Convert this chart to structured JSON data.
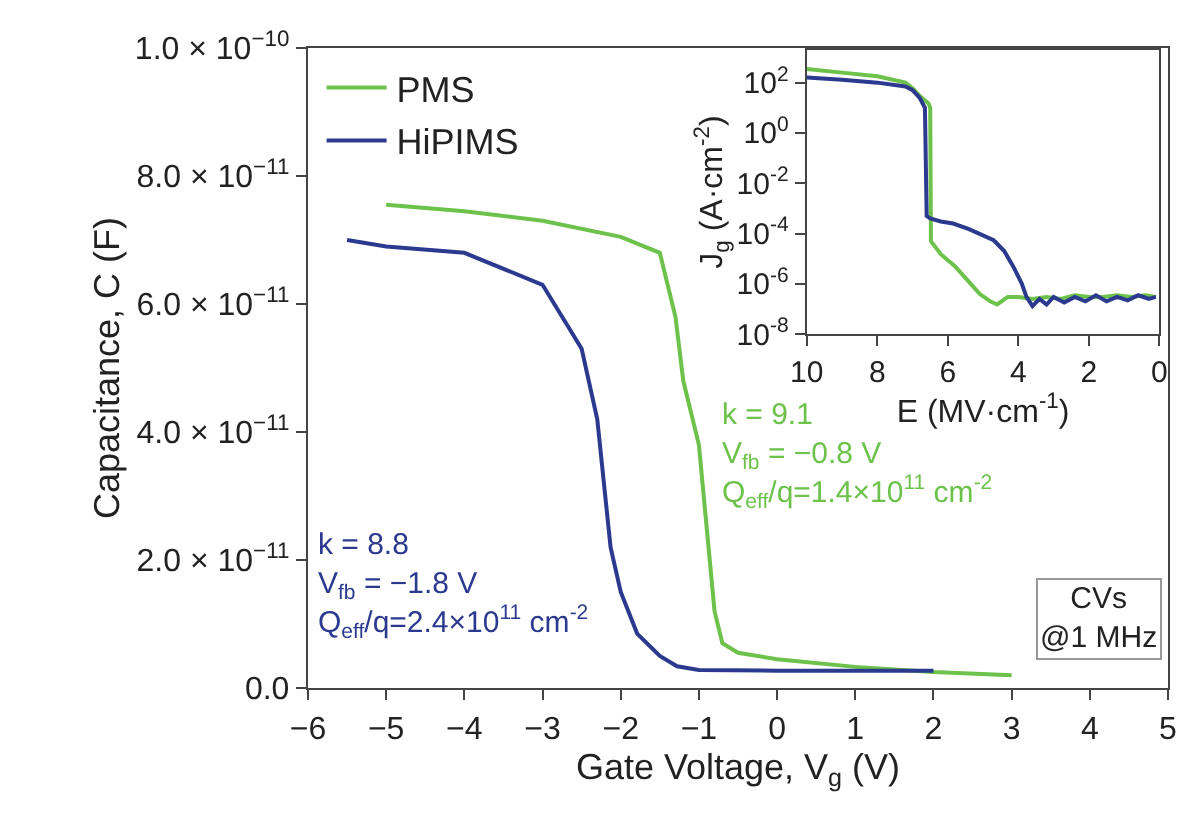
{
  "chart_data": [
    {
      "type": "line",
      "xlabel": "Gate Voltage, V$_{g}$ (V)",
      "ylabel": "Capacitance, C (F)",
      "series": [
        {
          "name": "PMS",
          "color": "#6cc24a",
          "x": [
            -5,
            -4,
            -3,
            -2,
            -1.5,
            -1.3,
            -1.2,
            -1.0,
            -0.9,
            -0.8,
            -0.7,
            -0.5,
            0,
            1,
            2,
            3
          ],
          "values": [
            7.55e-11,
            7.45e-11,
            7.3e-11,
            7.05e-11,
            6.8e-11,
            5.8e-11,
            4.8e-11,
            3.8e-11,
            2.5e-11,
            1.2e-11,
            7e-12,
            5.5e-12,
            4.5e-12,
            3.3e-12,
            2.5e-12,
            2e-12
          ]
        },
        {
          "name": "HiPIMS",
          "color": "#2b3a8f",
          "x": [
            -5.5,
            -5,
            -4,
            -3,
            -2.5,
            -2.3,
            -2.13,
            -2.0,
            -1.79,
            -1.5,
            -1.28,
            -1,
            0,
            1,
            2
          ],
          "values": [
            7e-11,
            6.9e-11,
            6.8e-11,
            6.3e-11,
            5.3e-11,
            4.2e-11,
            2.2e-11,
            1.5e-11,
            8.5e-12,
            5e-12,
            3.4e-12,
            2.8e-12,
            2.7e-12,
            2.7e-12,
            2.7e-12
          ]
        }
      ],
      "xlim": [
        -6,
        5
      ],
      "xticks": [
        -6,
        -5,
        -4,
        -3,
        -2,
        -1,
        0,
        1,
        2,
        3,
        4,
        5
      ],
      "ylim": [
        0,
        1e-10
      ],
      "yticks": [
        {
          "value": 0,
          "label": "0.0"
        },
        {
          "value": 2e-11,
          "label": "2.0 × 10$^{−11}$"
        },
        {
          "value": 4e-11,
          "label": "4.0 × 10$^{−11}$"
        },
        {
          "value": 6e-11,
          "label": "6.0 × 10$^{−11}$"
        },
        {
          "value": 8e-11,
          "label": "8.0 × 10$^{−11}$"
        },
        {
          "value": 1e-10,
          "label": "1.0 × 10$^{−10}$"
        }
      ],
      "annotations": [
        "k = 9.1\nV$_{fb}$ = −0.8 V\nQ$_{eff}$/q=1.4×10$^{11}$ cm$^{-2}$",
        "k = 8.8\nV$_{fb}$ = −1.8 V\nQ$_{eff}$/q=2.4×10$^{11}$ cm$^{-2}$",
        "CVs\n@1 MHz"
      ],
      "legend": "top left"
    },
    {
      "type": "line",
      "xlabel": "E (MV·cm$^{-1}$)",
      "ylabel": "J$_{g}$ (A·cm$^{-2}$)",
      "log": "y",
      "series": [
        {
          "color": "#6cc24a",
          "x": [
            10,
            9,
            8,
            7.2,
            7,
            6.8,
            6.55,
            6.5,
            6.48,
            6.2,
            5.8,
            5.4,
            5.1,
            4.8,
            4.6,
            4.3,
            4.0,
            3.6,
            3.2,
            2.8,
            2.4,
            2.0,
            1.6,
            1.2,
            0.8,
            0.4,
            0.1
          ],
          "values": [
            350,
            250,
            180,
            100,
            60,
            30,
            15,
            10,
            5e-05,
            1.5e-05,
            5e-06,
            1.2e-06,
            4e-07,
            2e-07,
            1.5e-07,
            3e-07,
            3e-07,
            2.5e-07,
            3e-07,
            2.5e-07,
            3.5e-07,
            3e-07,
            3e-07,
            3.5e-07,
            3e-07,
            3.5e-07,
            3e-07
          ]
        },
        {
          "color": "#2b3a8f",
          "x": [
            10,
            9,
            8,
            7.2,
            7,
            6.8,
            6.65,
            6.6,
            6.5,
            6.2,
            5.85,
            5.4,
            4.7,
            4.4,
            4.15,
            3.9,
            3.77,
            3.6,
            3.4,
            3.2,
            3.0,
            2.7,
            2.4,
            2.1,
            1.8,
            1.5,
            1.2,
            0.9,
            0.6,
            0.3,
            0.1
          ],
          "values": [
            160,
            130,
            100,
            70,
            50,
            25,
            10,
            0.0005,
            0.0004,
            0.0003,
            0.00025,
            0.00015,
            5.4e-05,
            2e-05,
            5e-06,
            1e-06,
            3e-07,
            1.3e-07,
            2.5e-07,
            1.5e-07,
            3e-07,
            1.8e-07,
            3e-07,
            2e-07,
            3.5e-07,
            2e-07,
            3e-07,
            2.2e-07,
            3.5e-07,
            2.5e-07,
            3e-07
          ]
        }
      ],
      "xlim": [
        10,
        0
      ],
      "xticks": [
        10,
        8,
        6,
        4,
        2,
        0
      ],
      "ylim": [
        1e-08,
        2000
      ],
      "yticks": [
        {
          "value": 1e-08,
          "label": "10$^{-8}$"
        },
        {
          "value": 1e-06,
          "label": "10$^{-6}$"
        },
        {
          "value": 0.0001,
          "label": "10$^{-4}$"
        },
        {
          "value": 0.01,
          "label": "10$^{-2}$"
        },
        {
          "value": 1,
          "label": "10$^{0}$"
        },
        {
          "value": 100,
          "label": "10$^{2}$"
        }
      ],
      "legend": false
    }
  ]
}
